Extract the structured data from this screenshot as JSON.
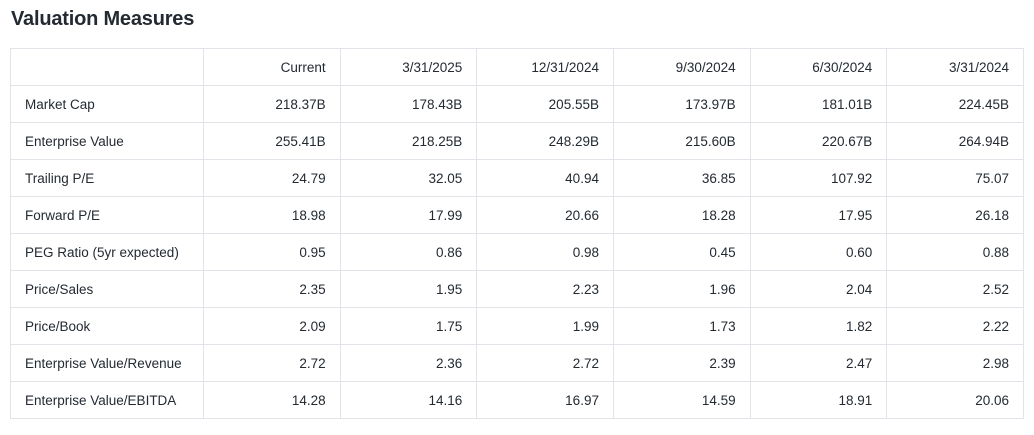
{
  "title": "Valuation Measures",
  "colors": {
    "text": "#232a31",
    "border": "#e0e4e9",
    "background": "#ffffff"
  },
  "table": {
    "columns": [
      "",
      "Current",
      "3/31/2025",
      "12/31/2024",
      "9/30/2024",
      "6/30/2024",
      "3/31/2024"
    ],
    "rows": [
      {
        "label": "Market Cap",
        "values": [
          "218.37B",
          "178.43B",
          "205.55B",
          "173.97B",
          "181.01B",
          "224.45B"
        ]
      },
      {
        "label": "Enterprise Value",
        "values": [
          "255.41B",
          "218.25B",
          "248.29B",
          "215.60B",
          "220.67B",
          "264.94B"
        ]
      },
      {
        "label": "Trailing P/E",
        "values": [
          "24.79",
          "32.05",
          "40.94",
          "36.85",
          "107.92",
          "75.07"
        ]
      },
      {
        "label": "Forward P/E",
        "values": [
          "18.98",
          "17.99",
          "20.66",
          "18.28",
          "17.95",
          "26.18"
        ]
      },
      {
        "label": "PEG Ratio (5yr expected)",
        "values": [
          "0.95",
          "0.86",
          "0.98",
          "0.45",
          "0.60",
          "0.88"
        ]
      },
      {
        "label": "Price/Sales",
        "values": [
          "2.35",
          "1.95",
          "2.23",
          "1.96",
          "2.04",
          "2.52"
        ]
      },
      {
        "label": "Price/Book",
        "values": [
          "2.09",
          "1.75",
          "1.99",
          "1.73",
          "1.82",
          "2.22"
        ]
      },
      {
        "label": "Enterprise Value/Revenue",
        "values": [
          "2.72",
          "2.36",
          "2.72",
          "2.39",
          "2.47",
          "2.98"
        ]
      },
      {
        "label": "Enterprise Value/EBITDA",
        "values": [
          "14.28",
          "14.16",
          "16.97",
          "14.59",
          "18.91",
          "20.06"
        ]
      }
    ]
  }
}
